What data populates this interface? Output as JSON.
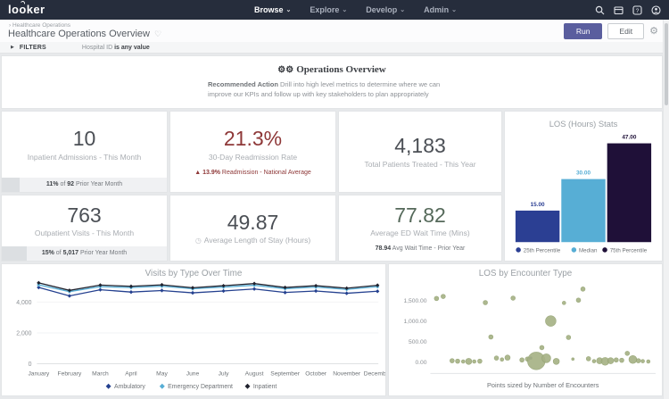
{
  "nav": {
    "logo": "looker",
    "items": [
      {
        "label": "Browse"
      },
      {
        "label": "Explore"
      },
      {
        "label": "Develop"
      },
      {
        "label": "Admin"
      }
    ],
    "icons": [
      "search",
      "marketplace",
      "help",
      "account"
    ]
  },
  "header": {
    "breadcrumb": "Healthcare Operations",
    "title": "Healthcare Operations Overview",
    "run_label": "Run",
    "edit_label": "Edit"
  },
  "filters": {
    "label": "FILTERS",
    "field": "Hospital ID",
    "value": "is any value"
  },
  "overview": {
    "title": "Operations Overview",
    "note_bold": "Recommended Action",
    "note_rest": " Drill into high level metrics to determine where we can improve our KPIs and follow up with key stakeholders to plan appropriately"
  },
  "kpis": [
    {
      "value": "10",
      "value_color": "#4b4f55",
      "label": "Inpatient Admissions - This Month",
      "progress_pct": 11,
      "note": [
        {
          "t": "11%",
          "b": true
        },
        {
          "t": " of ",
          "b": false
        },
        {
          "t": "92",
          "b": true
        },
        {
          "t": " Prior Year Month",
          "b": false
        }
      ]
    },
    {
      "value": "21.3%",
      "value_color": "#8e3838",
      "label": "30-Day Readmission Rate",
      "note_color": "#8e3838",
      "note": [
        {
          "t": "▲ ",
          "b": false
        },
        {
          "t": "13.9%",
          "b": true
        },
        {
          "t": " Readmission - National Average",
          "b": false
        }
      ]
    },
    {
      "value": "4,183",
      "value_color": "#4b4f55",
      "label": "Total Patients Treated - This Year"
    },
    {
      "value": "763",
      "value_color": "#4b4f55",
      "label": "Outpatient Visits - This Month",
      "progress_pct": 15,
      "note": [
        {
          "t": "15%",
          "b": true
        },
        {
          "t": " of ",
          "b": false
        },
        {
          "t": "5,017",
          "b": true
        },
        {
          "t": " Prior Year Month",
          "b": false
        }
      ]
    },
    {
      "value": "49.87",
      "value_color": "#4b4f55",
      "label": "Average Length of Stay (Hours)",
      "label_icon": "clock"
    },
    {
      "value": "77.82",
      "value_color": "#55695a",
      "label": "Average ED Wait Time (Mins)",
      "note": [
        {
          "t": "78.94",
          "b": true
        },
        {
          "t": " Avg Wait Time - Prior Year",
          "b": false
        }
      ]
    }
  ],
  "chart_data": [
    {
      "type": "bar",
      "title": "LOS (Hours) Stats",
      "categories": [
        "25th Percentile",
        "Median",
        "75th Percentile"
      ],
      "values": [
        15,
        30,
        47
      ],
      "value_labels": [
        "15.00",
        "30.00",
        "47.00"
      ],
      "colors": [
        "#2b3f93",
        "#57aed5",
        "#1f1038"
      ],
      "ylim": [
        0,
        47
      ],
      "legend_position": "bottom"
    },
    {
      "type": "line",
      "title": "Visits by Type Over Time",
      "x": [
        "January",
        "February",
        "March",
        "April",
        "May",
        "June",
        "July",
        "August",
        "September",
        "October",
        "November",
        "December"
      ],
      "series": [
        {
          "name": "Ambulatory",
          "color": "#24408f",
          "values": [
            4950,
            4400,
            4800,
            4650,
            4750,
            4600,
            4720,
            4850,
            4620,
            4720,
            4570,
            4700
          ]
        },
        {
          "name": "Emergency Department",
          "color": "#57aed5",
          "values": [
            5120,
            4680,
            5000,
            4940,
            5030,
            4860,
            4970,
            5090,
            4870,
            4970,
            4820,
            5000
          ]
        },
        {
          "name": "Inpatient",
          "color": "#20222e",
          "values": [
            5250,
            4760,
            5100,
            5020,
            5120,
            4930,
            5060,
            5200,
            4950,
            5060,
            4900,
            5090
          ]
        }
      ],
      "yticks": [
        {
          "v": 0,
          "label": "0"
        },
        {
          "v": 2000,
          "label": "2,000"
        },
        {
          "v": 4000,
          "label": "4,000"
        }
      ],
      "ylim": [
        0,
        5600
      ],
      "legend_position": "bottom"
    },
    {
      "type": "scatter",
      "title": "LOS by Encounter Type",
      "xlabel": "Points sized by Number of Encounters",
      "yticks": [
        {
          "v": 0,
          "label": "0.00"
        },
        {
          "v": 500,
          "label": "500.00"
        },
        {
          "v": 1000,
          "label": "1,000.00"
        },
        {
          "v": 1500,
          "label": "1,500.00"
        }
      ],
      "ylim": [
        0,
        1900
      ],
      "point_color": "#a7b286",
      "point_stroke": "#93a272",
      "highlight_color": "#3c4c7c",
      "points": [
        [
          2,
          1550,
          2.5
        ],
        [
          5,
          1600,
          2.5
        ],
        [
          9,
          30,
          2.5
        ],
        [
          11.5,
          20,
          2.5
        ],
        [
          14,
          10,
          2
        ],
        [
          16.5,
          15,
          3.5
        ],
        [
          19,
          10,
          2
        ],
        [
          21.5,
          20,
          2.5
        ],
        [
          24,
          1450,
          2.5
        ],
        [
          26.5,
          610,
          2.5
        ],
        [
          29,
          95,
          2.5
        ],
        [
          31.5,
          60,
          2
        ],
        [
          34,
          105,
          3
        ],
        [
          36.5,
          1560,
          2.5
        ],
        [
          40.5,
          50,
          2.5
        ],
        [
          43,
          70,
          2.5
        ],
        [
          44.5,
          95,
          1.8,
          1
        ],
        [
          47,
          25,
          10
        ],
        [
          49.5,
          350,
          2.5
        ],
        [
          51.5,
          90,
          5
        ],
        [
          53.5,
          1000,
          6
        ],
        [
          56,
          15,
          3.5
        ],
        [
          59.5,
          1440,
          2
        ],
        [
          61.5,
          600,
          2.5
        ],
        [
          63.5,
          70,
          1.5
        ],
        [
          66,
          1510,
          2.5
        ],
        [
          68,
          1780,
          2.5
        ],
        [
          70.5,
          80,
          2.5
        ],
        [
          73,
          20,
          2
        ],
        [
          75.5,
          30,
          3.5
        ],
        [
          78,
          15,
          4.5
        ],
        [
          80.5,
          30,
          3.5
        ],
        [
          83,
          50,
          2.5
        ],
        [
          85.5,
          40,
          2.5
        ],
        [
          88,
          210,
          2.5
        ],
        [
          90.5,
          60,
          4.5
        ],
        [
          93,
          30,
          2.5
        ],
        [
          95,
          20,
          2
        ],
        [
          97.5,
          10,
          2
        ]
      ]
    }
  ]
}
